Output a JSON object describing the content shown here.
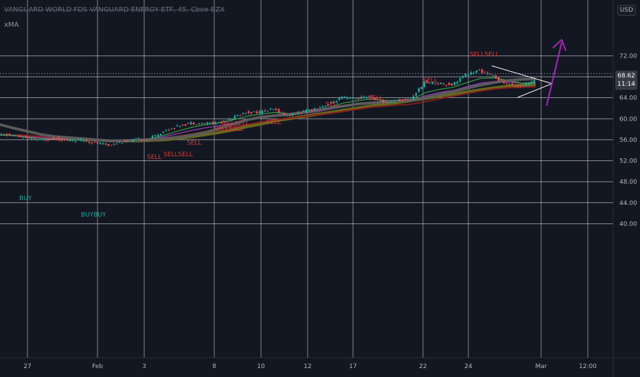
{
  "header": {
    "symbol_title": "VANGUARD WORLD FDS VANGUARD ENERGY ETF, 45, Cboe BZX",
    "indicator": "xMA",
    "currency": "USD"
  },
  "price_tag": {
    "price": "68.62",
    "countdown": "11:14"
  },
  "colors": {
    "background": "#131722",
    "grid": "#d0d3da",
    "candle_up": "#26a69a",
    "candle_down": "#ef5350",
    "ma_gray": "#5d5d5d",
    "ma_olive": "#6b6b1d",
    "ma_red": "#8b1c1c",
    "ma_purple": "#b040d0",
    "ma_green": "#3aa64a",
    "signal_sell": "#e53935",
    "signal_buy": "#26a69a",
    "annotation": "#9c27b0",
    "wedge": "#ffffff"
  },
  "chart_data": {
    "type": "line",
    "title": "VANGUARD WORLD FDS VANGUARD ENERGY ETF, 45, Cboe BZX",
    "xlabel": "",
    "ylabel": "",
    "ylim": [
      36.3,
      77.6
    ],
    "grid": true,
    "y_ticks": [
      "72.00",
      "68.00",
      "64.00",
      "60.00",
      "56.00",
      "52.00",
      "48.00",
      "44.00",
      "40.00"
    ],
    "x_ticks": [
      "27",
      "Feb",
      "3",
      "8",
      "10",
      "12",
      "17",
      "22",
      "24",
      "Mar",
      "12:00"
    ],
    "x": [
      0,
      20,
      40,
      60,
      80,
      100,
      120,
      140,
      160,
      180,
      200,
      220,
      240,
      260,
      280,
      300,
      320,
      340,
      360,
      380,
      400,
      420,
      440,
      460,
      480,
      500,
      520,
      540,
      560,
      580,
      600,
      620,
      640,
      660,
      680,
      700,
      720,
      740,
      760,
      780
    ],
    "series": [
      {
        "values": [
          57.0,
          56.9,
          56.3,
          55.9,
          56.3,
          55.8,
          56.0,
          55.4,
          55.0,
          55.6,
          56.0,
          56.3,
          57.6,
          58.6,
          59.2,
          59.1,
          59.3,
          60.2,
          61.2,
          61.3,
          61.8,
          60.6,
          61.2,
          61.9,
          62.8,
          64.0,
          63.8,
          64.3,
          63.1,
          63.5,
          63.8,
          66.9,
          66.8,
          66.5,
          68.4,
          69.2,
          68.1,
          66.6,
          66.2,
          67.1
        ]
      },
      {
        "values": [
          58.9,
          58.2,
          57.6,
          57.0,
          56.6,
          56.4,
          56.2,
          56.0,
          55.8,
          55.8,
          55.9,
          56.0,
          56.2,
          56.5,
          56.9,
          57.4,
          58.2,
          59.0,
          59.8,
          60.3,
          60.6,
          60.8,
          61.2,
          61.6,
          62.0,
          62.4,
          62.8,
          63.0,
          63.2,
          63.4,
          63.5,
          64.0,
          64.6,
          65.2,
          65.8,
          66.4,
          66.9,
          67.3,
          67.5,
          67.6
        ]
      },
      {
        "values": [
          56.9,
          56.8,
          56.5,
          56.2,
          56.1,
          56.0,
          55.9,
          55.8,
          55.6,
          55.7,
          55.9,
          56.2,
          56.9,
          57.7,
          58.4,
          58.9,
          59.2,
          59.8,
          60.5,
          60.9,
          61.2,
          61.0,
          61.2,
          61.6,
          62.2,
          63.0,
          63.4,
          63.8,
          63.5,
          63.5,
          63.7,
          65.0,
          65.6,
          66.0,
          66.9,
          67.7,
          67.8,
          67.3,
          66.8,
          66.9
        ]
      },
      {
        "values": [
          56.9,
          56.8,
          56.6,
          56.4,
          56.2,
          56.1,
          56.0,
          55.9,
          55.8,
          55.8,
          55.9,
          56.1,
          56.6,
          57.2,
          57.8,
          58.3,
          58.7,
          59.2,
          59.8,
          60.3,
          60.7,
          60.8,
          61.0,
          61.3,
          61.8,
          62.4,
          62.8,
          63.2,
          63.2,
          63.3,
          63.5,
          64.4,
          65.0,
          65.4,
          66.1,
          66.8,
          67.1,
          67.0,
          66.8,
          66.8
        ]
      },
      {
        "values": [
          56.9,
          56.9,
          56.8,
          56.6,
          56.4,
          56.3,
          56.2,
          56.0,
          55.9,
          55.8,
          55.9,
          56.0,
          56.3,
          56.7,
          57.1,
          57.6,
          58.0,
          58.4,
          58.9,
          59.4,
          59.8,
          60.1,
          60.4,
          60.7,
          61.0,
          61.4,
          61.8,
          62.2,
          62.4,
          62.6,
          62.8,
          63.3,
          63.8,
          64.3,
          64.8,
          65.3,
          65.7,
          65.9,
          66.0,
          66.1
        ]
      },
      {
        "values": [
          null,
          null,
          null,
          null,
          null,
          null,
          null,
          null,
          null,
          55.8,
          55.8,
          55.9,
          56.0,
          56.3,
          56.6,
          57.0,
          57.4,
          57.9,
          58.5,
          59.0,
          59.6,
          60.0,
          60.4,
          60.8,
          61.2,
          61.6,
          62.0,
          62.4,
          62.8,
          63.1,
          63.5,
          63.9,
          64.3,
          64.7,
          65.1,
          65.5,
          65.9,
          66.2,
          66.4,
          66.5
        ]
      }
    ],
    "signals": [
      {
        "label": "BUY",
        "type": "buy"
      },
      {
        "label": "BUYBUY",
        "type": "buy"
      },
      {
        "label": "SELL",
        "type": "sell"
      },
      {
        "label": "SELLSELL",
        "type": "sell"
      },
      {
        "label": "SELL",
        "type": "sell"
      },
      {
        "label": "SELLSELL",
        "type": "sell"
      },
      {
        "label": "SELLSELL",
        "type": "sell"
      },
      {
        "label": "SELL",
        "type": "sell"
      },
      {
        "label": "SELL",
        "type": "sell"
      },
      {
        "label": "SELL",
        "type": "sell"
      },
      {
        "label": "SELL",
        "type": "sell"
      },
      {
        "label": "SELLSELL",
        "type": "sell"
      }
    ]
  }
}
